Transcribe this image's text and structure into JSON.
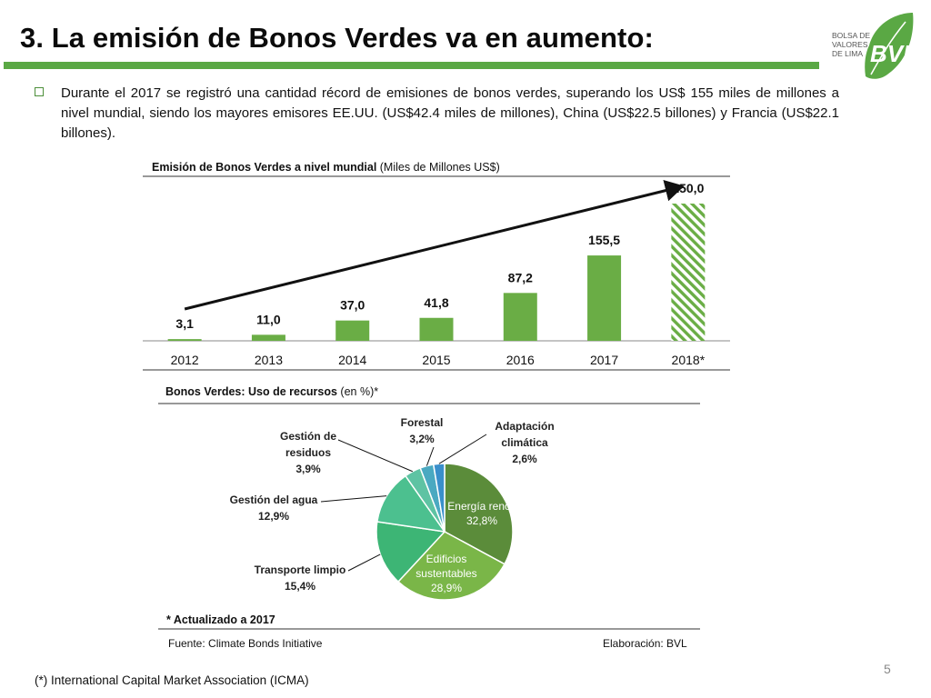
{
  "header": {
    "title": "3. La emisión de Bonos Verdes va en aumento:",
    "logo_text": "BVL",
    "logo_small": [
      "BOLSA DE",
      "VALORES",
      "DE LIMA"
    ]
  },
  "bullet": {
    "text": "Durante el 2017 se registró una cantidad récord de emisiones de bonos verdes, superando los US$ 155 miles de millones a nivel mundial, siendo los mayores emisores EE.UU. (US$42.4 miles de millones), China (US$22.5 billones) y Francia (US$22.1 billones)."
  },
  "bar_chart": {
    "title_bold": "Emisión de Bonos Verdes  a nivel  mundial",
    "title_rest": " (Miles de Millones US$)"
  },
  "pie_chart": {
    "title_bold": "Bonos Verdes: Uso de recursos",
    "title_rest": " (en %)*"
  },
  "notes": {
    "updated": "* Actualizado a 2017",
    "source": "Fuente: Climate Bonds Initiative",
    "credit": "Elaboración: BVL",
    "page": "5",
    "footnote": "(*) International Capital Market Association (ICMA)"
  },
  "colors": {
    "accent": "#5aa844",
    "bar": "#6aad45",
    "pie": [
      "#5b8c3a",
      "#7ab648",
      "#3db575",
      "#4cc08f",
      "#5ec3a3",
      "#4aa9c1",
      "#3a8fcb"
    ]
  },
  "chart_data": [
    {
      "type": "bar",
      "title": "Emisión de Bonos Verdes  a nivel  mundial (Miles de Millones US$)",
      "categories": [
        "2012",
        "2013",
        "2014",
        "2015",
        "2016",
        "2017",
        "2018*"
      ],
      "values": [
        3.1,
        11.0,
        37.0,
        41.8,
        87.2,
        155.5,
        250.0
      ],
      "value_labels": [
        "3,1",
        "11,0",
        "37,0",
        "41,8",
        "87,2",
        "155,5",
        "250,0"
      ],
      "hatched_categories": [
        "2018*"
      ],
      "ylim": [
        0,
        250
      ],
      "grid": false,
      "trend_arrow": true
    },
    {
      "type": "pie",
      "title": "Bonos Verdes: Uso de recursos (en %)*",
      "slices": [
        {
          "label": "Energía renov",
          "value": 32.8,
          "text": "32,8%"
        },
        {
          "label": "Edificios sustentables",
          "value": 28.9,
          "text": "28,9%"
        },
        {
          "label": "Transporte limpio",
          "value": 15.4,
          "text": "15,4%"
        },
        {
          "label": "Gestión del agua",
          "value": 12.9,
          "text": "12,9%"
        },
        {
          "label": "Gestión de residuos",
          "value": 3.9,
          "text": "3,9%"
        },
        {
          "label": "Forestal",
          "value": 3.2,
          "text": "3,2%"
        },
        {
          "label": "Adaptación climática",
          "value": 2.6,
          "text": "2,6%"
        }
      ]
    }
  ]
}
